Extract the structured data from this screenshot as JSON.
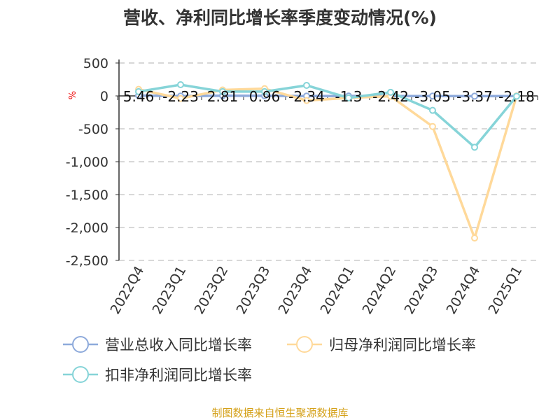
{
  "chart_data": {
    "type": "line",
    "title": "营收、净利同比增长率季度变动情况(%)",
    "ylabel": "%",
    "ylim": [
      -2500,
      500
    ],
    "yticks": [
      500,
      0,
      -500,
      -1000,
      -1500,
      -2000,
      -2500
    ],
    "ytick_labels": [
      "500",
      "0",
      "-500",
      "-1,000",
      "-1,500",
      "-2,000",
      "-2,500"
    ],
    "grid": true,
    "legend_position": "bottom",
    "categories": [
      "2022Q4",
      "2023Q1",
      "2023Q2",
      "2023Q3",
      "2023Q4",
      "2024Q1",
      "2024Q2",
      "2024Q3",
      "2024Q4",
      "2025Q1"
    ],
    "series": [
      {
        "name": "营业总收入同比增长率",
        "color": "#8eaadb",
        "values": [
          5.46,
          -2.23,
          2.81,
          0.96,
          -2.34,
          -1.3,
          -2.42,
          -3.05,
          -3.37,
          -2.18
        ],
        "labels": [
          "5.46",
          "-2.23",
          "2.81",
          "0.96",
          "-2.34",
          "-1.3",
          "-2.42",
          "-3.05",
          "-3.37",
          "-2.18"
        ]
      },
      {
        "name": "归母净利润同比增长率",
        "color": "#ffd99a",
        "values": [
          100,
          -40,
          90,
          110,
          -70,
          -30,
          -5,
          -465,
          -2160,
          0
        ]
      },
      {
        "name": "扣非净利润同比增长率",
        "color": "#86d4d8",
        "values": [
          65,
          170,
          65,
          65,
          160,
          -30,
          55,
          -220,
          -780,
          -5
        ]
      }
    ],
    "source": "制图数据来自恒生聚源数据库"
  }
}
